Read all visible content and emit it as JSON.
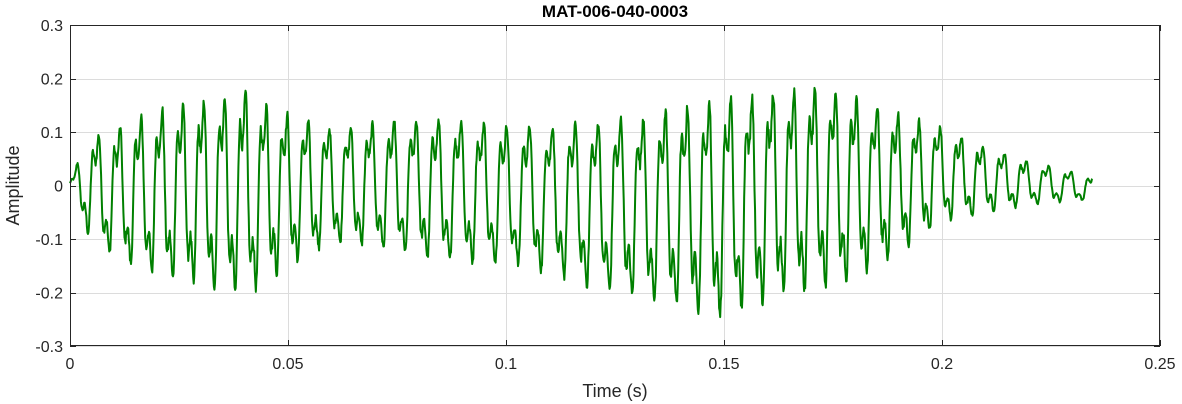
{
  "chart_data": {
    "type": "line",
    "title": "MAT-006-040-0003",
    "xlabel": "Time (s)",
    "ylabel": "Amplitude",
    "xlim": [
      0,
      0.25
    ],
    "ylim": [
      -0.3,
      0.3
    ],
    "xticks": [
      0,
      0.05,
      0.1,
      0.15,
      0.2,
      0.25
    ],
    "xtick_labels": [
      "0",
      "0.05",
      "0.1",
      "0.15",
      "0.2",
      "0.25"
    ],
    "yticks": [
      -0.3,
      -0.2,
      -0.1,
      0,
      0.1,
      0.2,
      0.3
    ],
    "ytick_labels": [
      "-0.3",
      "-0.2",
      "-0.1",
      "0",
      "0.1",
      "0.2",
      "0.3"
    ],
    "grid": true,
    "series": [
      {
        "color": "#008000",
        "x_range": [
          0,
          0.2345
        ],
        "sample_rate_hz": 8000,
        "envelope": {
          "t": [
            0,
            0.004,
            0.01,
            0.02,
            0.03,
            0.04,
            0.05,
            0.06,
            0.07,
            0.08,
            0.09,
            0.1,
            0.11,
            0.12,
            0.13,
            0.14,
            0.15,
            0.16,
            0.17,
            0.18,
            0.19,
            0.2,
            0.21,
            0.22,
            0.2345
          ],
          "max": [
            0.01,
            0.1,
            0.12,
            0.16,
            0.18,
            0.2,
            0.15,
            0.12,
            0.13,
            0.14,
            0.14,
            0.13,
            0.13,
            0.14,
            0.15,
            0.17,
            0.19,
            0.2,
            0.21,
            0.19,
            0.15,
            0.12,
            0.08,
            0.05,
            0.02
          ],
          "min": [
            -0.01,
            -0.1,
            -0.15,
            -0.19,
            -0.21,
            -0.23,
            -0.17,
            -0.12,
            -0.13,
            -0.15,
            -0.16,
            -0.16,
            -0.18,
            -0.21,
            -0.23,
            -0.25,
            -0.27,
            -0.24,
            -0.22,
            -0.2,
            -0.14,
            -0.08,
            -0.06,
            -0.04,
            -0.03
          ]
        },
        "dominant_freq_hz": 200,
        "harmonic_freq_hz": 600
      }
    ]
  }
}
